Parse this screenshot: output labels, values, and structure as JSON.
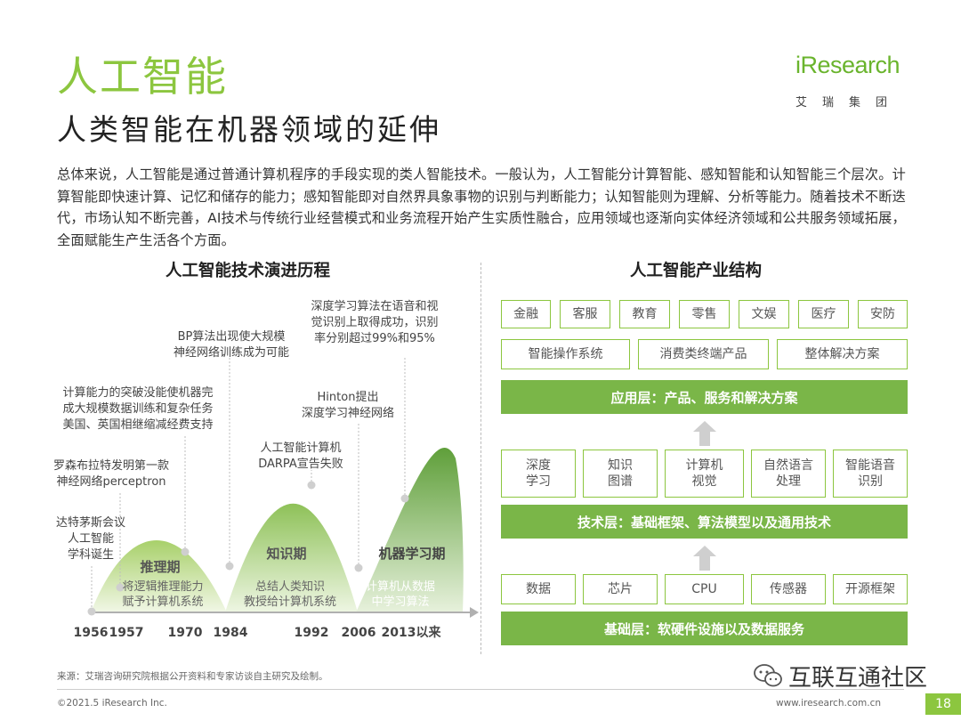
{
  "page": {
    "title": "人工智能",
    "subtitle": "人类智能在机器领域的延伸",
    "intro": "总体来说，人工智能是通过普通计算机程序的手段实现的类人智能技术。一般认为，人工智能分计算智能、感知智能和认知智能三个层次。计算智能即快速计算、记忆和储存的能力；感知智能即对自然界具象事物的识别与判断能力；认知智能则为理解、分析等能力。随着技术不断迭代，市场认知不断完善，AI技术与传统行业经营模式和业务流程开始产生实质性融合，应用领域也逐渐向实体经济领域和公共服务领域拓展，全面赋能生产生活各个方面。"
  },
  "logo": {
    "brand": "iResearch",
    "cn": "艾瑞集团"
  },
  "timeline": {
    "heading": "人工智能技术演进历程",
    "years": [
      "1956",
      "1957",
      "1970",
      "1984",
      "1992",
      "2006",
      "2013以来"
    ],
    "phases": [
      {
        "name": "推理期",
        "desc": [
          "将逻辑推理能力",
          "赋予计算机系统"
        ]
      },
      {
        "name": "知识期",
        "desc": [
          "总结人类知识",
          "教授给计算机系统"
        ]
      },
      {
        "name": "机器学习期",
        "desc": [
          "计算机从数据",
          "中学习算法"
        ]
      }
    ],
    "events": [
      {
        "lines": [
          "达特茅斯会议",
          "人工智能",
          "学科诞生"
        ]
      },
      {
        "lines": [
          "罗森布拉特发明第一款",
          "神经网络perceptron"
        ]
      },
      {
        "lines": [
          "计算能力的突破没能使机器完",
          "成大规模数据训练和复杂任务",
          "美国、英国相继缩减经费支持"
        ]
      },
      {
        "lines": [
          "BP算法出现使大规模",
          "神经网络训练成为可能"
        ]
      },
      {
        "lines": [
          "人工智能计算机",
          "DARPA宣告失败"
        ]
      },
      {
        "lines": [
          "Hinton提出",
          "深度学习神经网络"
        ]
      },
      {
        "lines": [
          "深度学习算法在语音和视",
          "觉识别上取得成功，识别",
          "率分别超过99%和95%"
        ]
      }
    ]
  },
  "structure": {
    "heading": "人工智能产业结构",
    "app_row1": [
      "金融",
      "客服",
      "教育",
      "零售",
      "文娱",
      "医疗",
      "安防"
    ],
    "app_row2": [
      "智能操作系统",
      "消费类终端产品",
      "整体解决方案"
    ],
    "app_layer": "应用层：产品、服务和解决方案",
    "tech_row": [
      "深度\n学习",
      "知识\n图谱",
      "计算机\n视觉",
      "自然语言\n处理",
      "智能语音\n识别"
    ],
    "tech_layer": "技术层：基础框架、算法模型以及通用技术",
    "base_row": [
      "数据",
      "芯片",
      "CPU",
      "传感器",
      "开源框架"
    ],
    "base_layer": "基础层：软硬件设施以及数据服务"
  },
  "footer": {
    "source": "来源：艾瑞咨询研究院根据公开资料和专家访谈自主研究及绘制。",
    "copyright": "©2021.5 iResearch Inc.",
    "website": "www.iresearch.com.cn",
    "page_number": "18",
    "watermark": "互联互通社区"
  },
  "colors": {
    "accent": "#8cc63f",
    "bar": "#7ab648",
    "dark_green": "#5a9a35"
  }
}
